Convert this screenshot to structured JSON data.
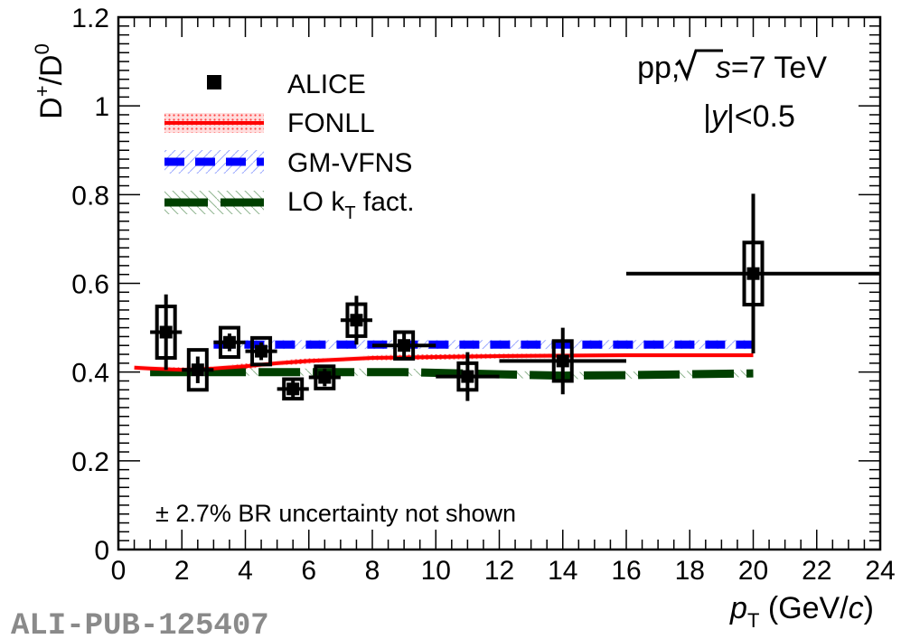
{
  "chart_data": {
    "type": "scatter",
    "ylabel_main": "D",
    "ylabel_sup1": "+",
    "ylabel_den": "/D",
    "ylabel_sup2": "0",
    "xlabel_var": "p",
    "xlabel_sub": "T",
    "xlabel_unit_open": " (GeV/",
    "xlabel_unit_c": "c",
    "xlabel_unit_close": ")",
    "xlim": [
      0,
      24
    ],
    "ylim": [
      0,
      1.2
    ],
    "x_ticks": [
      0,
      2,
      4,
      6,
      8,
      10,
      12,
      14,
      16,
      18,
      20,
      22,
      24
    ],
    "y_ticks": [
      "0",
      "0.2",
      "0.4",
      "0.6",
      "0.8",
      "1",
      "1.2"
    ],
    "y_tick_values": [
      0,
      0.2,
      0.4,
      0.6,
      0.8,
      1.0,
      1.2
    ],
    "annotation_collision_pre": "pp, ",
    "annotation_collision_s": "s",
    "annotation_collision_post": "=7 TeV",
    "annotation_rapidity_pre": "|",
    "annotation_rapidity_y": "y",
    "annotation_rapidity_post": "|<0.5",
    "br_note": "± 2.7% BR uncertainty not shown",
    "publication_id": "ALI-PUB-125407",
    "legend": {
      "placement": "top-left",
      "alice": "ALICE",
      "fonll": "FONLL",
      "gmvfns": "GM-VFNS",
      "lo_main": "LO k",
      "lo_sub": "T",
      "lo_post": " fact."
    },
    "colors": {
      "alice": "#000000",
      "fonll": "#ff0000",
      "gmvfns": "#0000ff",
      "lo": "#004000"
    },
    "series": [
      {
        "name": "ALICE",
        "points": [
          {
            "x": 1.5,
            "y": 0.49,
            "xlo": 1.0,
            "xhi": 2.0,
            "stat": 0.085,
            "sys": 0.058
          },
          {
            "x": 2.5,
            "y": 0.405,
            "xlo": 2.0,
            "xhi": 3.0,
            "stat": 0.03,
            "sys": 0.045
          },
          {
            "x": 3.5,
            "y": 0.467,
            "xlo": 3.0,
            "xhi": 4.0,
            "stat": 0.02,
            "sys": 0.033
          },
          {
            "x": 4.5,
            "y": 0.447,
            "xlo": 4.0,
            "xhi": 5.0,
            "stat": 0.02,
            "sys": 0.03
          },
          {
            "x": 5.5,
            "y": 0.362,
            "xlo": 5.0,
            "xhi": 6.0,
            "stat": 0.02,
            "sys": 0.022
          },
          {
            "x": 6.5,
            "y": 0.388,
            "xlo": 6.0,
            "xhi": 7.0,
            "stat": 0.02,
            "sys": 0.025
          },
          {
            "x": 7.5,
            "y": 0.517,
            "xlo": 7.0,
            "xhi": 8.0,
            "stat": 0.055,
            "sys": 0.036
          },
          {
            "x": 9.0,
            "y": 0.46,
            "xlo": 8.0,
            "xhi": 10.0,
            "stat": 0.03,
            "sys": 0.03
          },
          {
            "x": 11.0,
            "y": 0.39,
            "xlo": 10.0,
            "xhi": 12.0,
            "stat": 0.055,
            "sys": 0.03
          },
          {
            "x": 14.0,
            "y": 0.425,
            "xlo": 12.0,
            "xhi": 16.0,
            "stat": 0.075,
            "sys": 0.045
          },
          {
            "x": 20.0,
            "y": 0.622,
            "xlo": 16.0,
            "xhi": 24.0,
            "stat": 0.18,
            "sys": 0.07
          }
        ]
      },
      {
        "name": "FONLL",
        "x": [
          0.5,
          1,
          2,
          3,
          4,
          5,
          6,
          8,
          10,
          12,
          16,
          20
        ],
        "values": [
          0.41,
          0.408,
          0.405,
          0.408,
          0.413,
          0.42,
          0.425,
          0.432,
          0.434,
          0.436,
          0.438,
          0.438
        ]
      },
      {
        "name": "GM-VFNS",
        "x": [
          3,
          4,
          6,
          8,
          10,
          12,
          16,
          20
        ],
        "values": [
          0.462,
          0.462,
          0.462,
          0.462,
          0.462,
          0.462,
          0.462,
          0.462
        ]
      },
      {
        "name": "LO kT fact.",
        "x": [
          1,
          3,
          5,
          7,
          9,
          12,
          14,
          16,
          20
        ],
        "values": [
          0.4,
          0.4,
          0.4,
          0.4,
          0.4,
          0.395,
          0.392,
          0.393,
          0.397
        ]
      }
    ]
  }
}
